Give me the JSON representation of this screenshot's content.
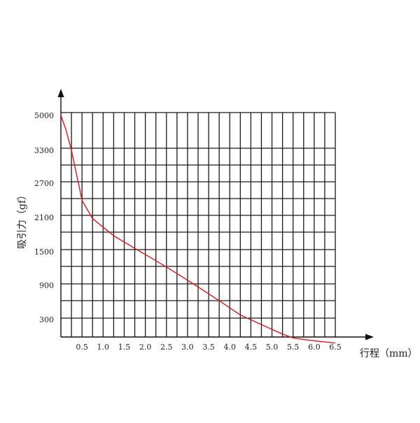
{
  "chart_data": {
    "type": "line",
    "xlabel": "行程（mm）",
    "ylabel": "吸引力（gf）",
    "x_ticks": [
      "0.5",
      "1.0",
      "1.5",
      "2.0",
      "2.5",
      "3.0",
      "3.5",
      "4.0",
      "4.5",
      "5.0",
      "5.5",
      "6.0",
      "6.5"
    ],
    "y_ticks": [
      "5000",
      "3300",
      "2700",
      "2100",
      "1500",
      "900",
      "300"
    ],
    "grid": true,
    "series": [
      {
        "color": "#e8141c",
        "x": [
          0.0,
          0.12,
          0.25,
          0.5,
          0.75,
          1.25,
          1.75,
          2.25,
          2.75,
          3.25,
          3.75,
          4.25,
          4.75,
          5.25,
          5.5,
          6.0,
          6.5
        ],
        "y": [
          5000,
          4300,
          3300,
          2400,
          2080,
          1780,
          1560,
          1340,
          1110,
          870,
          630,
          380,
          210,
          40,
          -30,
          -80,
          -120
        ]
      }
    ]
  }
}
